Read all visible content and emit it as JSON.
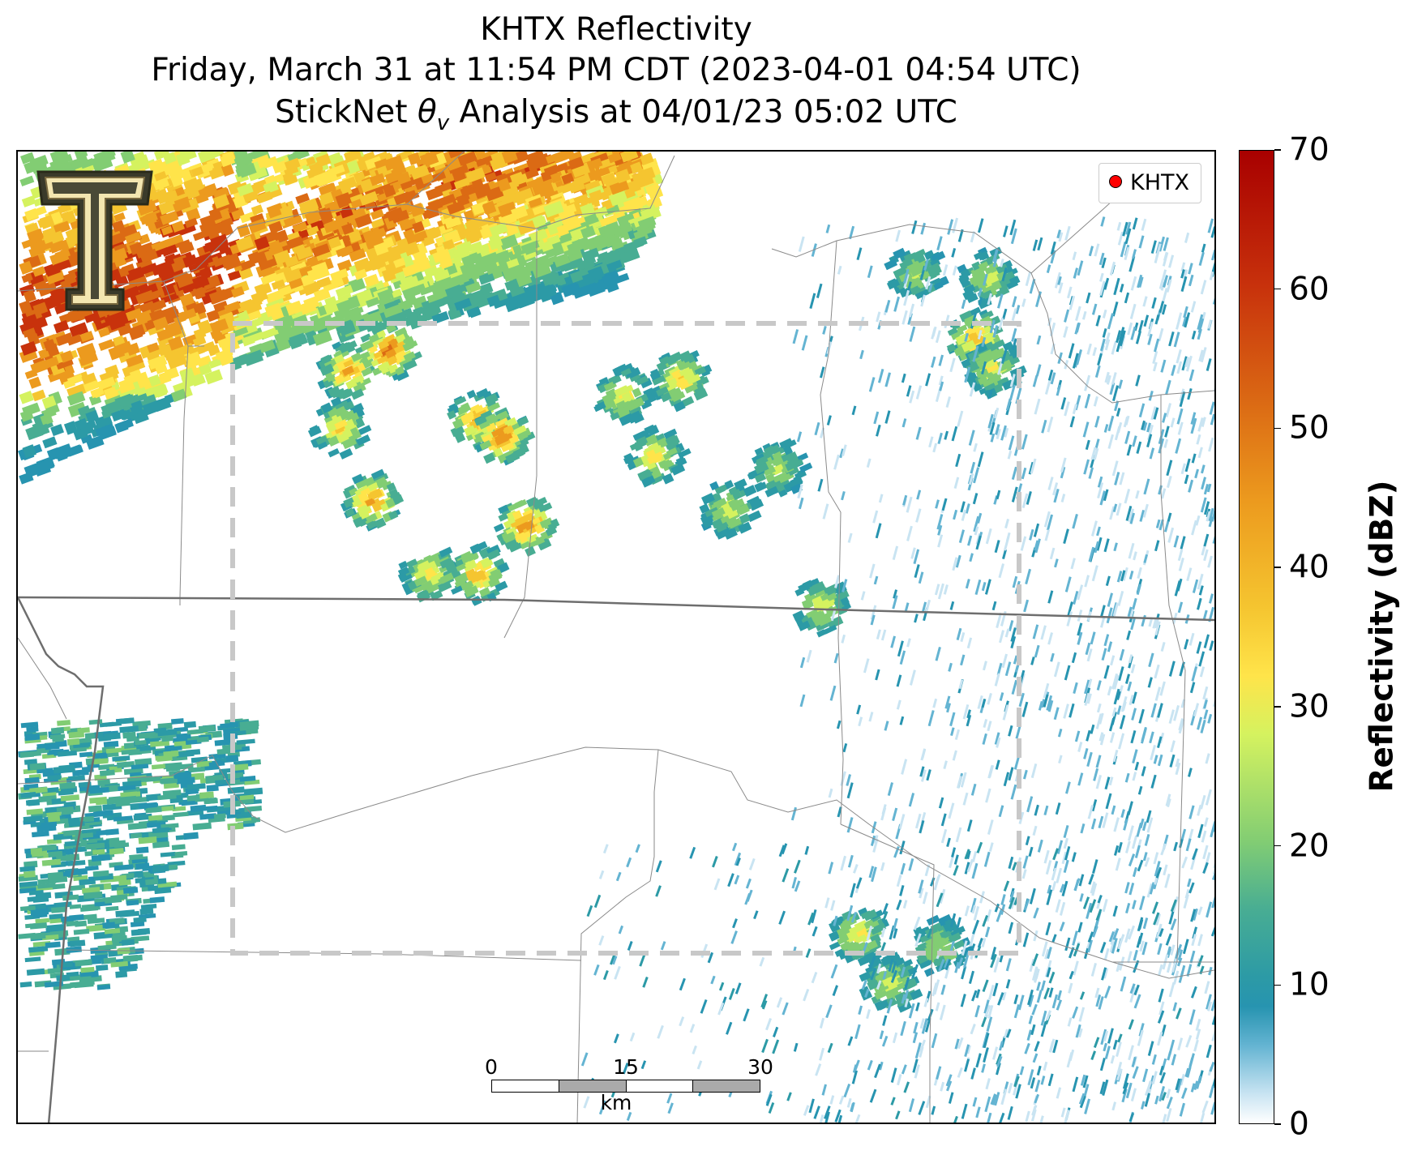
{
  "title": {
    "line1": "KHTX Reflectivity",
    "line2": "Friday, March 31 at 11:54 PM CDT (2023-04-01 04:54 UTC)",
    "line3_prefix": "StickNet ",
    "line3_symbol": "θ",
    "line3_subscript": "v",
    "line3_suffix": " Analysis at 04/01/23 05:02 UTC"
  },
  "legend": {
    "label": "KHTX",
    "marker_color": "#ff0000"
  },
  "logo": {
    "letter": "T",
    "icon": "texas-tech-double-t-icon",
    "color": "#f3e6b0"
  },
  "scalebar": {
    "ticks": [
      "0",
      "15",
      "30"
    ],
    "unit": "km"
  },
  "colorbar": {
    "label": "Reflectivity (dBZ)",
    "min": 0,
    "max": 70,
    "ticks": [
      "0",
      "10",
      "20",
      "30",
      "40",
      "50",
      "60",
      "70"
    ],
    "colors": {
      "low": "#ffffff",
      "mid": "#2794b0",
      "high": "#a80000"
    }
  },
  "analysis_box": {
    "style": "dashed",
    "color": "#c8c8c8"
  }
}
